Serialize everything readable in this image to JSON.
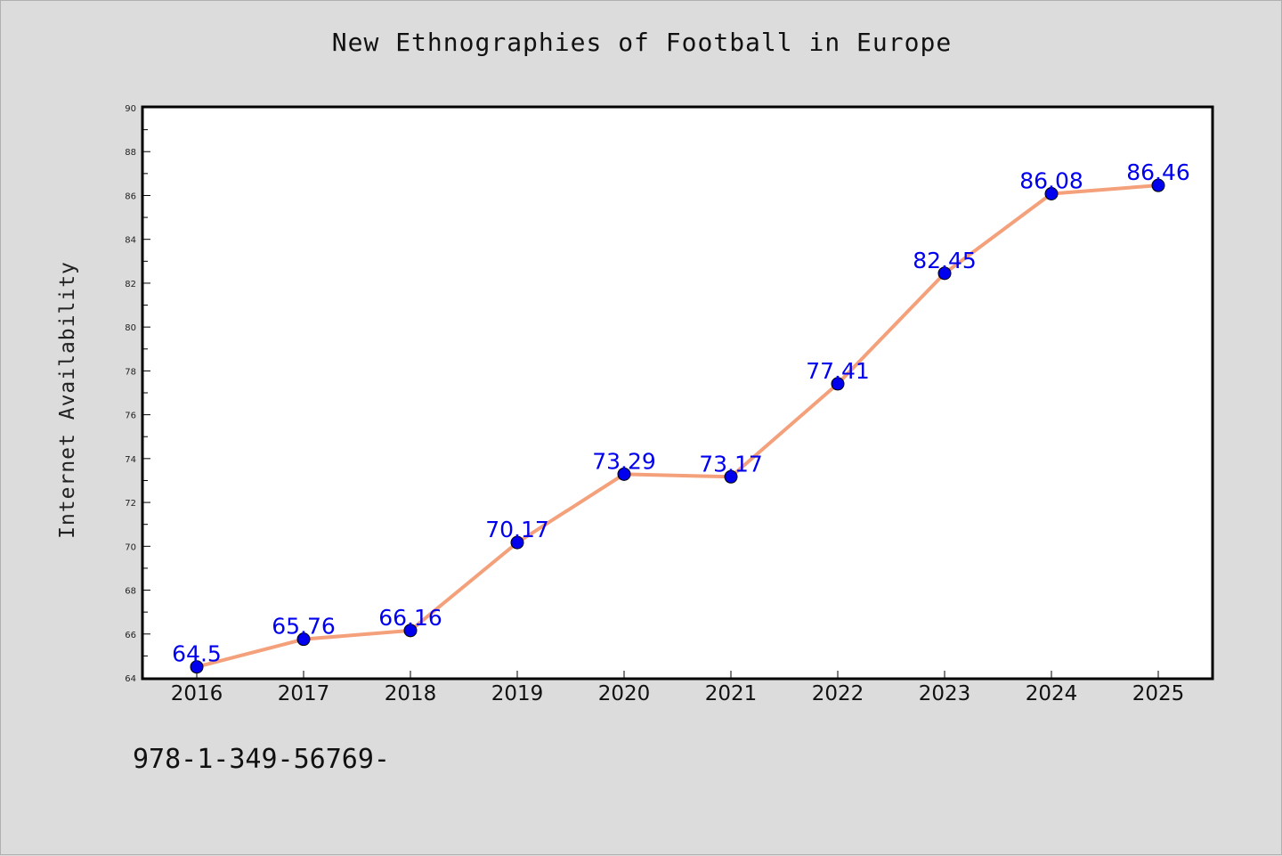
{
  "chart_data": {
    "type": "line",
    "title": "New Ethnographies of Football in Europe",
    "xlabel": "",
    "ylabel": "Internet Availability",
    "x": [
      "2016",
      "2017",
      "2018",
      "2019",
      "2020",
      "2021",
      "2022",
      "2023",
      "2024",
      "2025"
    ],
    "series": [
      {
        "values": [
          64.5,
          65.76,
          66.16,
          70.17,
          73.29,
          73.17,
          77.41,
          82.45,
          86.08,
          86.46
        ],
        "data_labels": [
          "64.5",
          "65.76",
          "66.16",
          "70.17",
          "73.29",
          "73.17",
          "77.41",
          "82.45",
          "86.08",
          "86.46"
        ],
        "line_color": "#f4a07a",
        "marker_color": "#0000ee"
      }
    ],
    "ylim": [
      64,
      90
    ],
    "yticks": [
      "64",
      "66",
      "68",
      "70",
      "72",
      "74",
      "76",
      "78",
      "80",
      "82",
      "84",
      "86",
      "88",
      "90"
    ],
    "grid": false,
    "legend": "none"
  },
  "footer_text": "978-1-349-56769-",
  "colors": {
    "background": "#dcdcdc",
    "plot_background": "#ffffff",
    "line": "#f4a07a",
    "marker": "#0000ee",
    "label": "#0000ee"
  }
}
